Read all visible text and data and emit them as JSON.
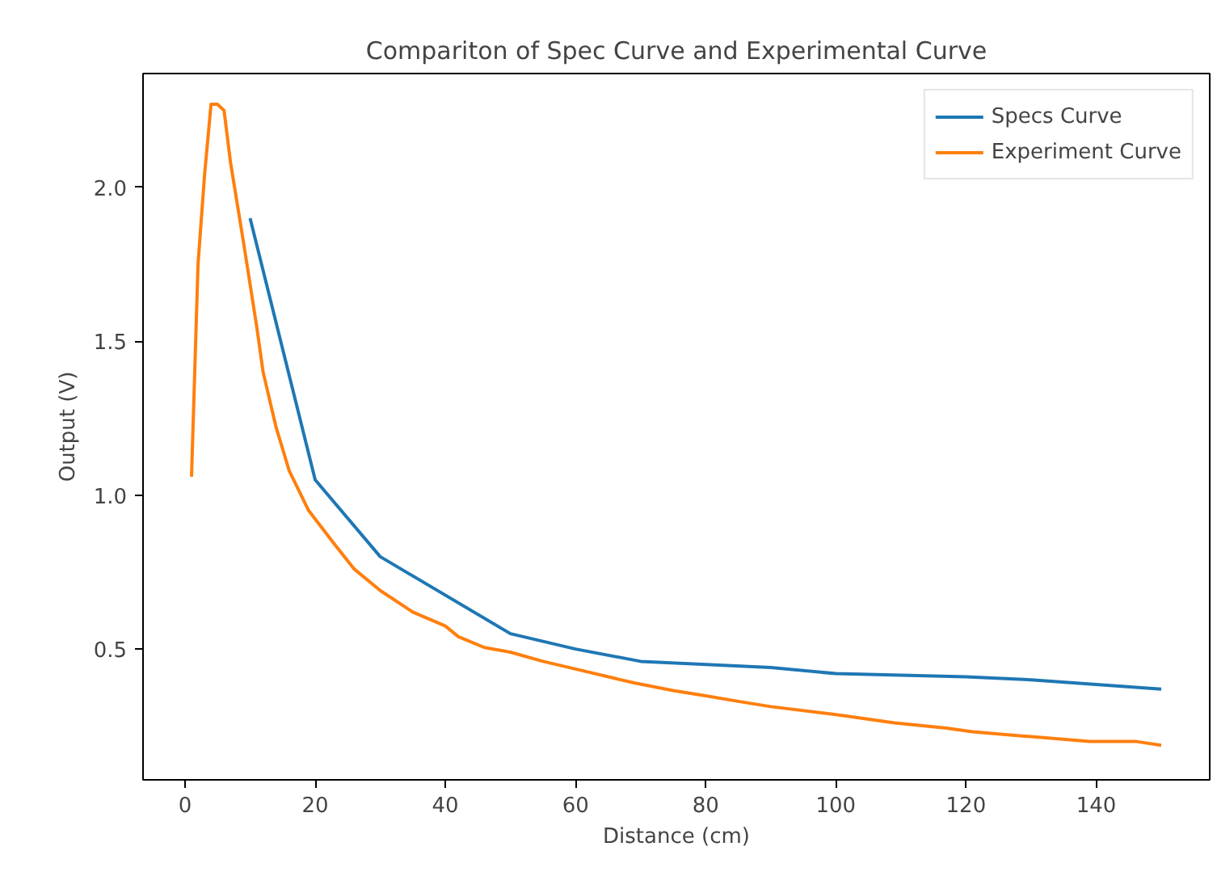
{
  "chart_data": {
    "type": "line",
    "title": "Compariton of Spec Curve and Experimental Curve",
    "xlabel": "Distance (cm)",
    "ylabel": "Output (V)",
    "xlim": [
      -6.45,
      157.45
    ],
    "ylim": [
      0.075,
      2.37
    ],
    "xticks": [
      0,
      20,
      40,
      60,
      80,
      100,
      120,
      140
    ],
    "yticks": [
      {
        "value": 0.5,
        "label": "0.5"
      },
      {
        "value": 1.0,
        "label": "1.0"
      },
      {
        "value": 1.5,
        "label": "1.5"
      },
      {
        "value": 2.0,
        "label": "2.0"
      }
    ],
    "grid": false,
    "legend": "top right",
    "line_style": "solid",
    "marker": "none",
    "series": [
      {
        "name": "Specs Curve",
        "color": "#1f77b4",
        "x": [
          10,
          20,
          30,
          50,
          60,
          70,
          80,
          90,
          100,
          110,
          120,
          130,
          140,
          150
        ],
        "values": [
          1.9,
          1.05,
          0.8,
          0.55,
          0.5,
          0.46,
          0.45,
          0.44,
          0.42,
          0.415,
          0.41,
          0.4,
          0.385,
          0.37
        ]
      },
      {
        "name": "Experiment Curve",
        "color": "#ff7f0e",
        "x": [
          1,
          2,
          3,
          4,
          5,
          6,
          7,
          9,
          11,
          12,
          14,
          16,
          19,
          23,
          26,
          30,
          35,
          40,
          42,
          46,
          50,
          55,
          60,
          69,
          75,
          80,
          85,
          90,
          100,
          109,
          117,
          121,
          129,
          139,
          146,
          150
        ],
        "values": [
          1.06,
          1.75,
          2.04,
          2.27,
          2.27,
          2.25,
          2.08,
          1.82,
          1.55,
          1.4,
          1.22,
          1.08,
          0.95,
          0.84,
          0.76,
          0.69,
          0.62,
          0.575,
          0.54,
          0.505,
          0.49,
          0.46,
          0.435,
          0.39,
          0.365,
          0.348,
          0.33,
          0.313,
          0.287,
          0.26,
          0.243,
          0.231,
          0.217,
          0.2,
          0.2,
          0.187
        ]
      }
    ]
  }
}
